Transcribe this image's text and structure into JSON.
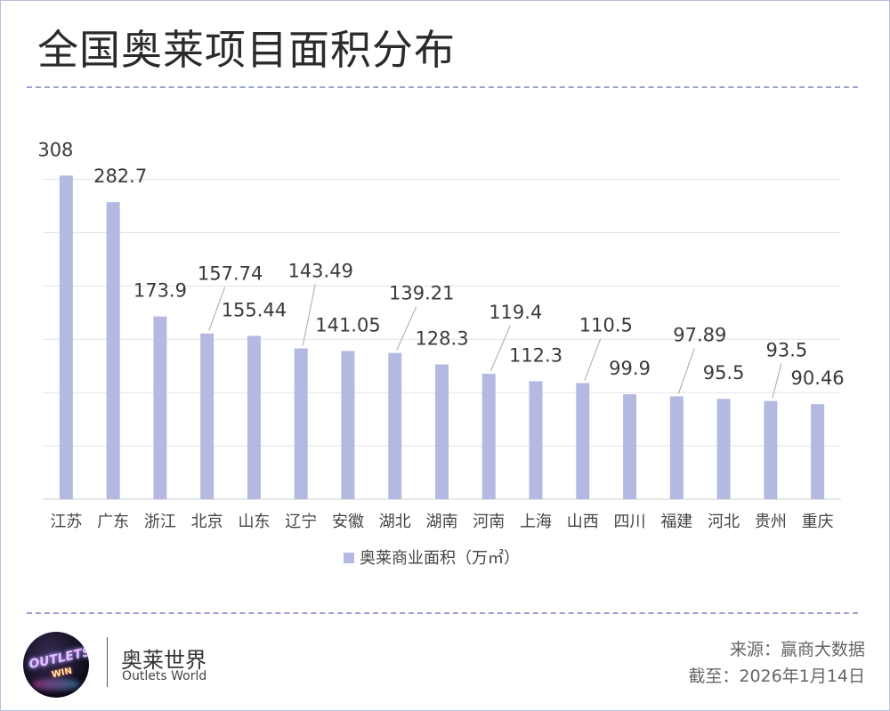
{
  "title": "全国奥莱项目面积分布",
  "chart_data": {
    "type": "bar",
    "title": "",
    "xlabel": "",
    "ylabel": "",
    "ylim": [
      0,
      315
    ],
    "grid": true,
    "legend_position": "bottom",
    "categories": [
      "江苏",
      "广东",
      "浙江",
      "北京",
      "山东",
      "辽宁",
      "安徽",
      "湖北",
      "湖南",
      "河南",
      "上海",
      "山西",
      "四川",
      "福建",
      "河北",
      "贵州",
      "重庆"
    ],
    "series": [
      {
        "name": "奥莱商业面积（万㎡）",
        "color": "#b4b9e2",
        "values": [
          308,
          282.7,
          173.9,
          157.74,
          155.44,
          143.49,
          141.05,
          139.21,
          128.3,
          119.4,
          112.3,
          110.5,
          99.9,
          97.89,
          95.5,
          93.5,
          90.46
        ],
        "labels": [
          "308",
          "282.7",
          "173.9",
          "157.74",
          "155.44",
          "143.49",
          "141.05",
          "139.21",
          "128.3",
          "119.4",
          "112.3",
          "110.5",
          "99.9",
          "97.89",
          "95.5",
          "93.5",
          "90.46"
        ]
      }
    ]
  },
  "brand": {
    "logo_text_1": "OUTLETS",
    "logo_text_2": "WIN",
    "name_cn": "奥莱世界",
    "name_en": "Outlets World"
  },
  "footer": {
    "source": "来源：赢商大数据",
    "date": "截至：2026年1月14日"
  }
}
